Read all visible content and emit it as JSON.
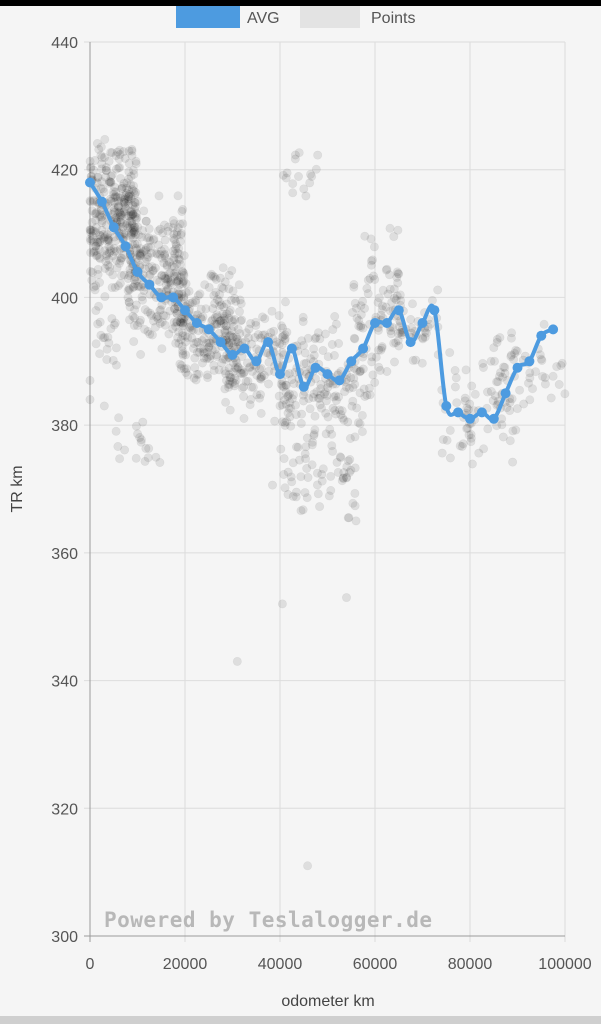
{
  "chart_data": {
    "type": "scatter",
    "xlabel": "odometer km",
    "ylabel": "TR km",
    "xlim": [
      0,
      100000
    ],
    "ylim": [
      300,
      440
    ],
    "xticks": [
      0,
      20000,
      40000,
      60000,
      80000,
      100000
    ],
    "yticks": [
      300,
      320,
      340,
      360,
      380,
      400,
      420,
      440
    ],
    "grid": true,
    "legend_position": "top",
    "watermark": "Powered by Teslalogger.de",
    "series": [
      {
        "name": "AVG",
        "type": "line",
        "color": "#4d9be0",
        "points": [
          [
            0,
            418
          ],
          [
            2500,
            415
          ],
          [
            5000,
            411
          ],
          [
            7500,
            408
          ],
          [
            10000,
            404
          ],
          [
            12500,
            402
          ],
          [
            15000,
            400
          ],
          [
            17500,
            400
          ],
          [
            20000,
            398
          ],
          [
            22500,
            396
          ],
          [
            25000,
            395
          ],
          [
            27500,
            393
          ],
          [
            30000,
            391
          ],
          [
            32500,
            392
          ],
          [
            35000,
            390
          ],
          [
            37500,
            393
          ],
          [
            40000,
            388
          ],
          [
            42500,
            392
          ],
          [
            45000,
            386
          ],
          [
            47500,
            389
          ],
          [
            50000,
            388
          ],
          [
            52500,
            387
          ],
          [
            55000,
            390
          ],
          [
            57500,
            392
          ],
          [
            60000,
            396
          ],
          [
            62500,
            396
          ],
          [
            65000,
            398
          ],
          [
            67500,
            393
          ],
          [
            70000,
            396
          ],
          [
            72500,
            398
          ],
          [
            75000,
            383
          ],
          [
            77500,
            382
          ],
          [
            80000,
            381
          ],
          [
            82500,
            382
          ],
          [
            85000,
            381
          ],
          [
            87500,
            385
          ],
          [
            90000,
            389
          ],
          [
            92500,
            390
          ],
          [
            95000,
            394
          ],
          [
            97500,
            395
          ]
        ]
      },
      {
        "name": "Points",
        "type": "scatter",
        "color": "#cccccc",
        "clusters": [
          {
            "x": [
              0,
              10000
            ],
            "y": [
              400,
              425
            ],
            "n": 320
          },
          {
            "x": [
              8000,
              20000
            ],
            "y": [
              390,
              417
            ],
            "n": 240
          },
          {
            "x": [
              18000,
              32000
            ],
            "y": [
              385,
              405
            ],
            "n": 220
          },
          {
            "x": [
              28000,
              42000
            ],
            "y": [
              380,
              400
            ],
            "n": 130
          },
          {
            "x": [
              40000,
              58000
            ],
            "y": [
              375,
              398
            ],
            "n": 170
          },
          {
            "x": [
              43000,
              56000
            ],
            "y": [
              365,
              378
            ],
            "n": 45
          },
          {
            "x": [
              55000,
              66000
            ],
            "y": [
              382,
              412
            ],
            "n": 90
          },
          {
            "x": [
              63000,
              74000
            ],
            "y": [
              388,
              402
            ],
            "n": 45
          },
          {
            "x": [
              74000,
              90000
            ],
            "y": [
              371,
              392
            ],
            "n": 70
          },
          {
            "x": [
              85000,
              100000
            ],
            "y": [
              382,
              397
            ],
            "n": 50
          },
          {
            "x": [
              1000,
              6000
            ],
            "y": [
              385,
              400
            ],
            "n": 20
          },
          {
            "x": [
              5000,
              15000
            ],
            "y": [
              371,
              382
            ],
            "n": 18
          },
          {
            "x": [
              40000,
              48000
            ],
            "y": [
              412,
              425
            ],
            "n": 16
          },
          {
            "x": [
              38000,
              46000
            ],
            "y": [
              366,
              380
            ],
            "n": 14
          }
        ],
        "outliers": [
          [
            31000,
            343
          ],
          [
            40500,
            352
          ],
          [
            45800,
            311
          ],
          [
            54000,
            353
          ],
          [
            0,
            387
          ],
          [
            56000,
            365
          ],
          [
            0,
            384
          ],
          [
            3000,
            383
          ]
        ]
      }
    ]
  }
}
